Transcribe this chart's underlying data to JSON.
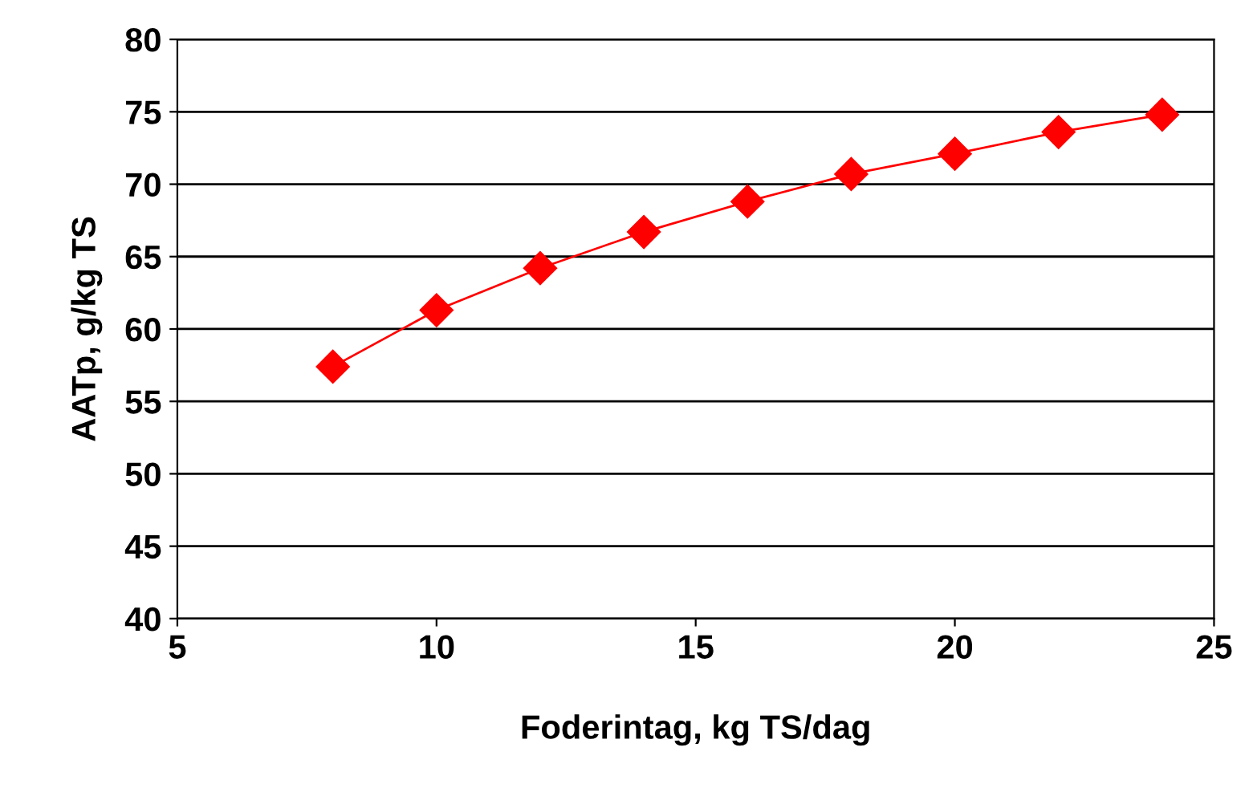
{
  "chart_data": {
    "type": "line",
    "xlabel": "Foderintag, kg TS/dag",
    "ylabel": "AATp, g/kg TS",
    "x": [
      8,
      10,
      12,
      14,
      16,
      18,
      20,
      22,
      24
    ],
    "series": [
      {
        "color": "#ff0000",
        "values": [
          57.4,
          61.3,
          64.2,
          66.7,
          68.8,
          70.7,
          72.1,
          73.6,
          74.8
        ]
      }
    ],
    "xlim": [
      5,
      25
    ],
    "xticks": [
      5,
      10,
      15,
      20,
      25
    ],
    "ylim": [
      40,
      80
    ],
    "yticks": [
      40,
      45,
      50,
      55,
      60,
      65,
      70,
      75,
      80
    ],
    "grid": "y",
    "marker": "diamond",
    "line_style": "solid"
  }
}
